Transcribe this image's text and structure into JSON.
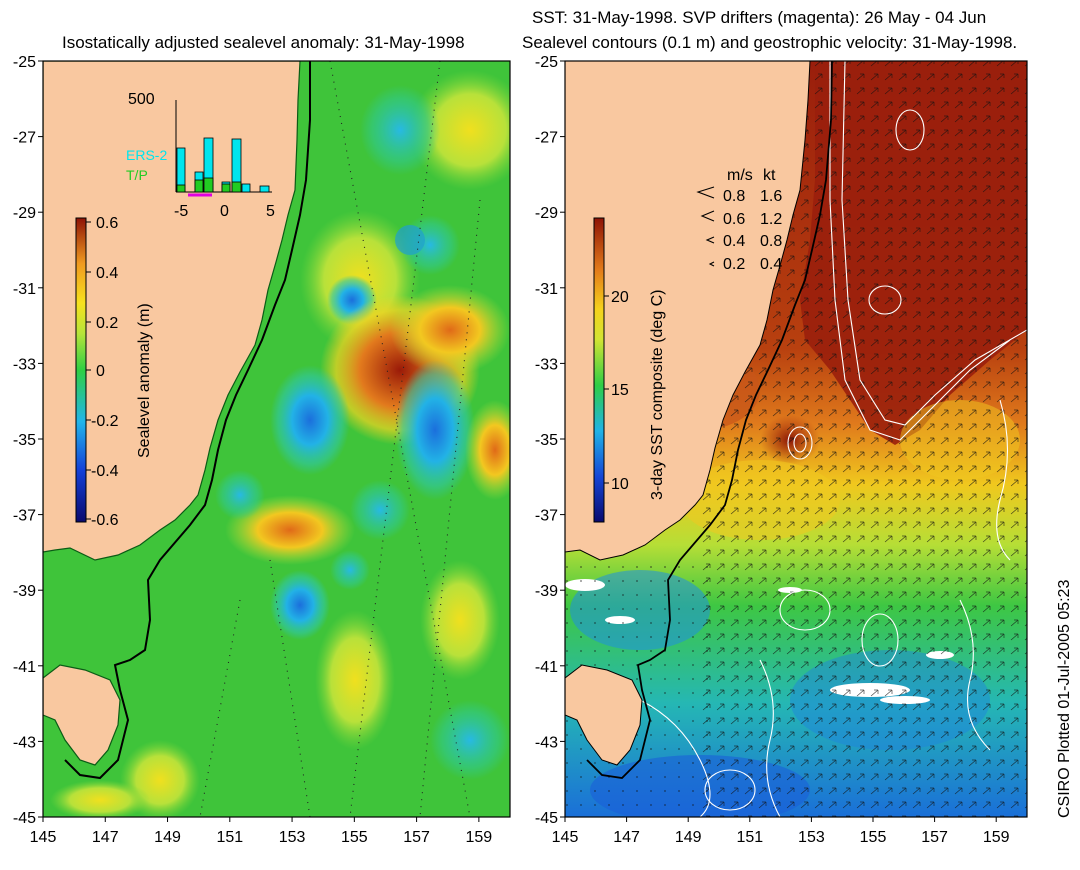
{
  "left_panel": {
    "title": "Isostatically adjusted sealevel anomaly: 31-May-1998",
    "colorbar": {
      "label": "Sealevel anomaly (m)",
      "ticks": [
        "0.6",
        "0.4",
        "0.2",
        "0",
        "-0.2",
        "-0.4",
        "-0.6"
      ]
    },
    "inset": {
      "ymax_label": "500",
      "x_ticks": [
        "-5",
        "0",
        "5"
      ],
      "legend": [
        {
          "name": "ERS-2",
          "color": "#00e5ee"
        },
        {
          "name": "T/P",
          "color": "#22cc22"
        }
      ]
    }
  },
  "right_panel": {
    "title_line1": "SST: 31-May-1998. SVP drifters (magenta): 26 May - 04 Jun",
    "title_line2": "Sealevel contours (0.1 m) and geostrophic velocity: 31-May-1998.",
    "colorbar": {
      "label": "3-day SST composite (deg C)",
      "ticks": [
        "20",
        "15",
        "10"
      ]
    },
    "speed_legend": {
      "header_ms": "m/s",
      "header_kt": "kt",
      "rows": [
        {
          "ms": "0.8",
          "kt": "1.6"
        },
        {
          "ms": "0.6",
          "kt": "1.2"
        },
        {
          "ms": "0.4",
          "kt": "0.8"
        },
        {
          "ms": "0.2",
          "kt": "0.4"
        }
      ]
    }
  },
  "axes": {
    "y_ticks": [
      "-25",
      "-27",
      "-29",
      "-31",
      "-33",
      "-35",
      "-37",
      "-39",
      "-41",
      "-43",
      "-45"
    ],
    "x_ticks": [
      "145",
      "147",
      "149",
      "151",
      "153",
      "155",
      "157",
      "159"
    ]
  },
  "credit": "CSIRO Plotted 01-Jul-2005 05:23",
  "colors": {
    "land": "#f9c8a0",
    "ocean_green": "#3fc43a",
    "warm_red": "#a81c0c",
    "cyan": "#21a9e8"
  }
}
